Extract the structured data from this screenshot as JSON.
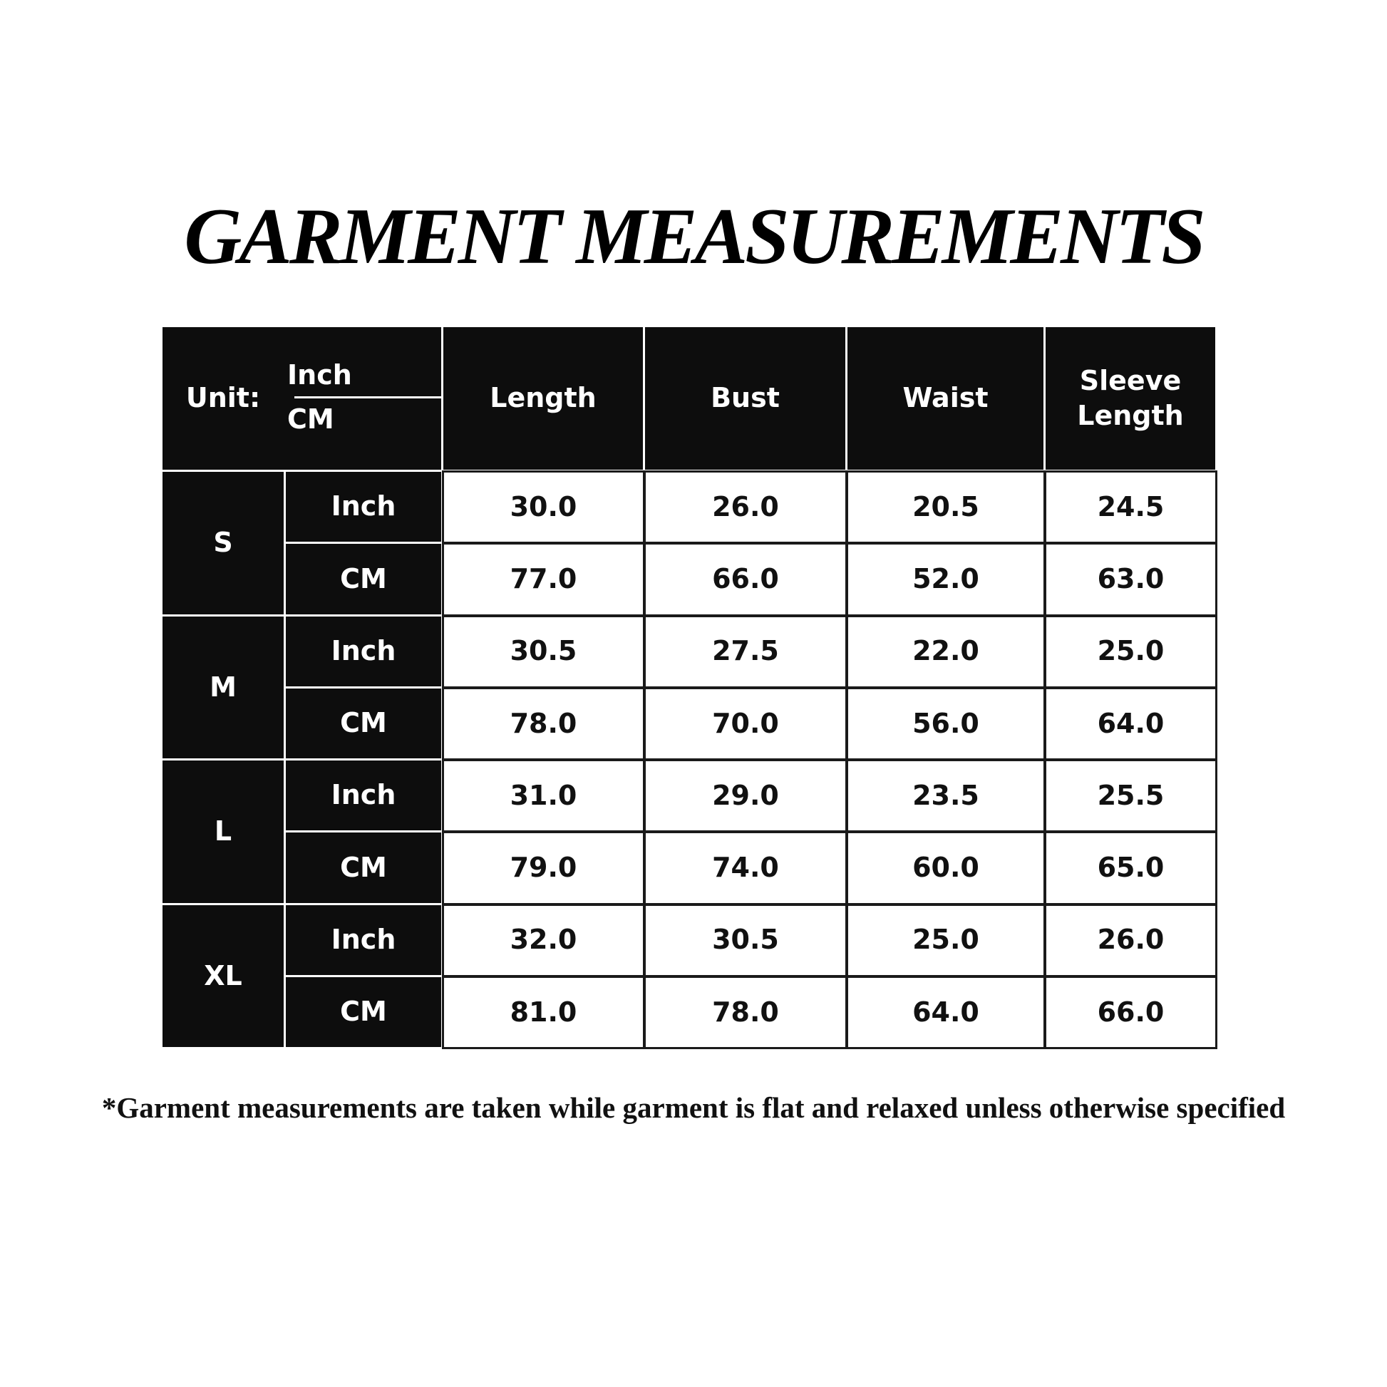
{
  "header": {
    "title": "GARMENT MEASUREMENTS"
  },
  "table": {
    "unit_label": "Unit:",
    "unit_options": [
      "Inch",
      "CM"
    ],
    "columns": [
      "Length",
      "Bust",
      "Waist",
      "Sleeve Length"
    ],
    "sizes": [
      {
        "size": "S",
        "rows": [
          {
            "unit": "Inch",
            "values": [
              "30.0",
              "26.0",
              "20.5",
              "24.5"
            ]
          },
          {
            "unit": "CM",
            "values": [
              "77.0",
              "66.0",
              "52.0",
              "63.0"
            ]
          }
        ]
      },
      {
        "size": "M",
        "rows": [
          {
            "unit": "Inch",
            "values": [
              "30.5",
              "27.5",
              "22.0",
              "25.0"
            ]
          },
          {
            "unit": "CM",
            "values": [
              "78.0",
              "70.0",
              "56.0",
              "64.0"
            ]
          }
        ]
      },
      {
        "size": "L",
        "rows": [
          {
            "unit": "Inch",
            "values": [
              "31.0",
              "29.0",
              "23.5",
              "25.5"
            ]
          },
          {
            "unit": "CM",
            "values": [
              "79.0",
              "74.0",
              "60.0",
              "65.0"
            ]
          }
        ]
      },
      {
        "size": "XL",
        "rows": [
          {
            "unit": "Inch",
            "values": [
              "32.0",
              "30.5",
              "25.0",
              "26.0"
            ]
          },
          {
            "unit": "CM",
            "values": [
              "81.0",
              "78.0",
              "64.0",
              "66.0"
            ]
          }
        ]
      }
    ]
  },
  "footnote": "*Garment measurements are taken while garment is flat and relaxed unless otherwise specified"
}
